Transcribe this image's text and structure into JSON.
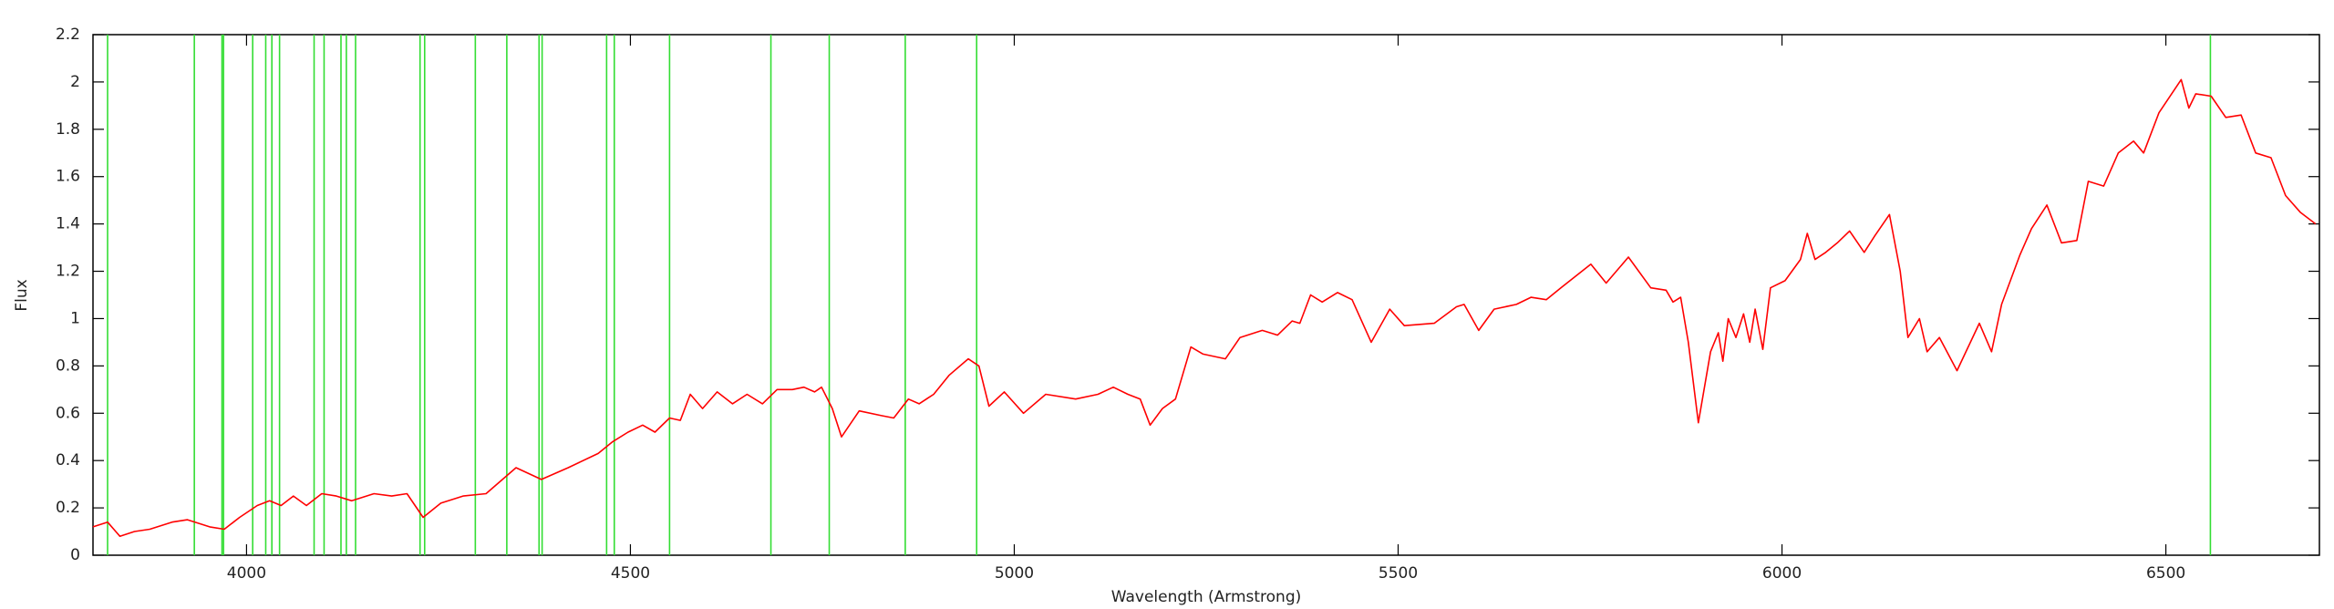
{
  "chart_data": {
    "type": "line",
    "xlabel": "Wavelength (Armstrong)",
    "ylabel": "Flux",
    "xlim": [
      3800,
      6700
    ],
    "ylim": [
      0,
      2.2
    ],
    "xticks": [
      4000,
      4500,
      5000,
      5500,
      6000,
      6500
    ],
    "yticks": [
      0,
      0.2,
      0.4,
      0.6,
      0.8,
      1,
      1.2,
      1.4,
      1.6,
      1.8,
      2,
      2.2
    ],
    "color": "#ff0000",
    "x": [
      3800,
      3819,
      3835,
      3854,
      3874,
      3903,
      3923,
      3952,
      3971,
      3991,
      4014,
      4030,
      4045,
      4061,
      4078,
      4098,
      4117,
      4137,
      4166,
      4189,
      4209,
      4230,
      4253,
      4282,
      4312,
      4351,
      4384,
      4419,
      4458,
      4477,
      4497,
      4516,
      4532,
      4551,
      4565,
      4578,
      4594,
      4613,
      4633,
      4652,
      4672,
      4691,
      4711,
      4726,
      4740,
      4749,
      4763,
      4775,
      4798,
      4827,
      4843,
      4862,
      4876,
      4895,
      4915,
      4940,
      4954,
      4967,
      4987,
      5012,
      5041,
      5080,
      5109,
      5129,
      5148,
      5164,
      5177,
      5193,
      5210,
      5230,
      5246,
      5275,
      5294,
      5323,
      5343,
      5362,
      5372,
      5386,
      5401,
      5421,
      5440,
      5465,
      5489,
      5508,
      5547,
      5576,
      5586,
      5605,
      5625,
      5654,
      5673,
      5693,
      5712,
      5751,
      5771,
      5800,
      5829,
      5849,
      5858,
      5868,
      5878,
      5891,
      5907,
      5917,
      5923,
      5930,
      5940,
      5950,
      5958,
      5965,
      5975,
      5985,
      6004,
      6024,
      6033,
      6043,
      6057,
      6072,
      6088,
      6107,
      6121,
      6140,
      6154,
      6164,
      6179,
      6189,
      6205,
      6228,
      6257,
      6273,
      6286,
      6310,
      6325,
      6345,
      6364,
      6384,
      6399,
      6419,
      6438,
      6458,
      6471,
      6491,
      6520,
      6530,
      6539,
      6559,
      6578,
      6598,
      6617,
      6637,
      6656,
      6675,
      6695
    ],
    "values": [
      0.12,
      0.14,
      0.08,
      0.1,
      0.11,
      0.14,
      0.15,
      0.12,
      0.11,
      0.16,
      0.21,
      0.23,
      0.21,
      0.25,
      0.21,
      0.26,
      0.25,
      0.23,
      0.26,
      0.25,
      0.26,
      0.16,
      0.22,
      0.25,
      0.26,
      0.37,
      0.32,
      0.37,
      0.43,
      0.48,
      0.52,
      0.55,
      0.52,
      0.58,
      0.57,
      0.68,
      0.62,
      0.69,
      0.64,
      0.68,
      0.64,
      0.7,
      0.7,
      0.71,
      0.69,
      0.71,
      0.62,
      0.5,
      0.61,
      0.59,
      0.58,
      0.66,
      0.64,
      0.68,
      0.76,
      0.83,
      0.8,
      0.63,
      0.69,
      0.6,
      0.68,
      0.66,
      0.68,
      0.71,
      0.68,
      0.66,
      0.55,
      0.62,
      0.66,
      0.88,
      0.85,
      0.83,
      0.92,
      0.95,
      0.93,
      0.99,
      0.98,
      1.1,
      1.07,
      1.11,
      1.08,
      0.9,
      1.04,
      0.97,
      0.98,
      1.05,
      1.06,
      0.95,
      1.04,
      1.06,
      1.09,
      1.08,
      1.13,
      1.23,
      1.15,
      1.26,
      1.13,
      1.12,
      1.07,
      1.09,
      0.9,
      0.56,
      0.86,
      0.94,
      0.82,
      1.0,
      0.92,
      1.02,
      0.9,
      1.04,
      0.87,
      1.13,
      1.16,
      1.25,
      1.36,
      1.25,
      1.28,
      1.32,
      1.37,
      1.28,
      1.35,
      1.44,
      1.2,
      0.92,
      1.0,
      0.86,
      0.92,
      0.78,
      0.98,
      0.86,
      1.06,
      1.27,
      1.38,
      1.48,
      1.32,
      1.33,
      1.58,
      1.56,
      1.7,
      1.75,
      1.7,
      1.87,
      2.01,
      1.89,
      1.95,
      1.94,
      1.85,
      1.86,
      1.7,
      1.68,
      1.52,
      1.45,
      1.4
    ],
    "markers": {
      "color": "#33dd33",
      "x": [
        3819,
        3932,
        3968,
        3970,
        4008,
        4025,
        4033,
        4043,
        4088,
        4101,
        4123,
        4130,
        4142,
        4226,
        4232,
        4298,
        4339,
        4381,
        4385,
        4469,
        4479,
        4551,
        4683,
        4759,
        4858,
        4951,
        6558
      ]
    }
  }
}
